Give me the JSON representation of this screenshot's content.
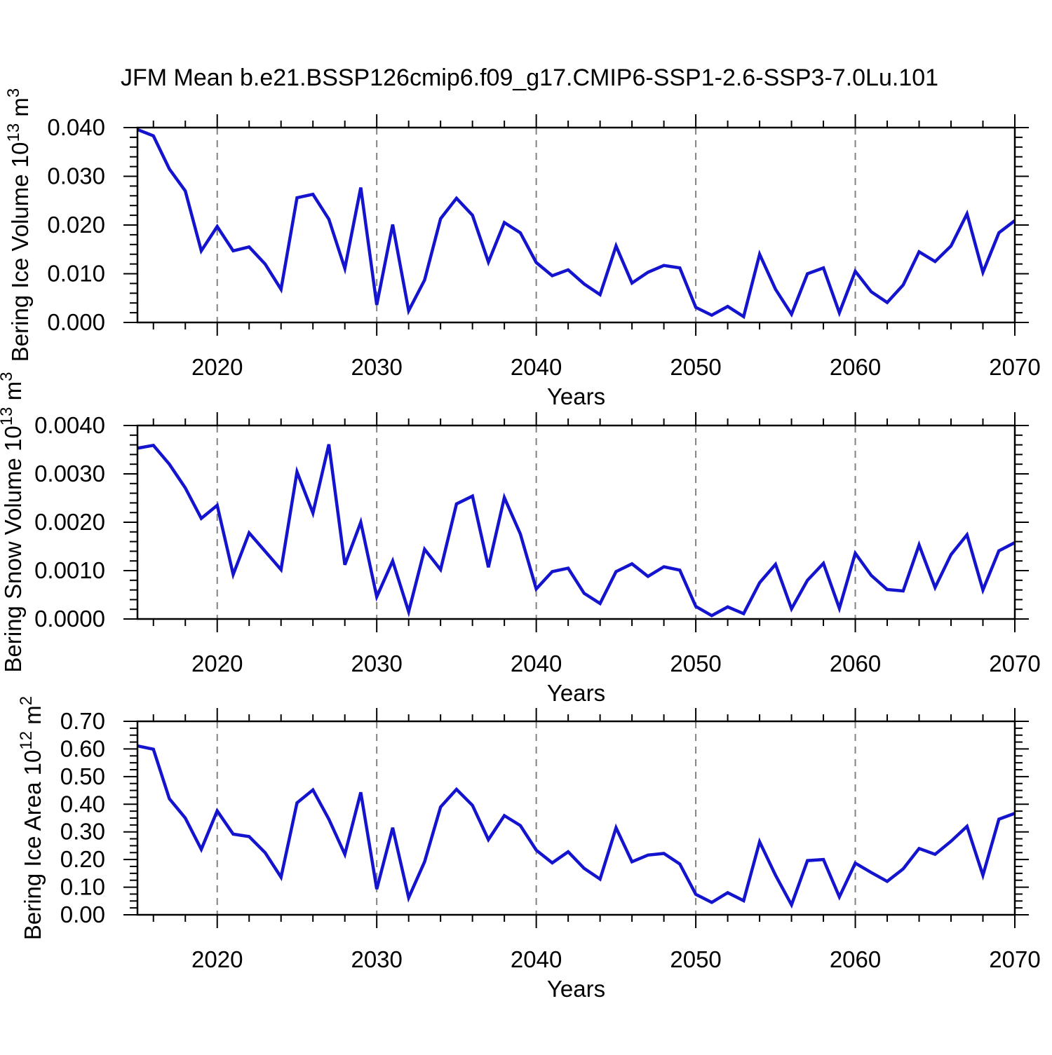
{
  "figure": {
    "title": "JFM Mean b.e21.BSSP126cmip6.f09_g17.CMIP6-SSP1-2.6-SSP3-7.0Lu.101",
    "background": "#ffffff",
    "line_color": "#1414cf",
    "frame_color": "#000000",
    "grid_color": "#828282",
    "text_color": "#000000"
  },
  "years": [
    2015,
    2016,
    2017,
    2018,
    2019,
    2020,
    2021,
    2022,
    2023,
    2024,
    2025,
    2026,
    2027,
    2028,
    2029,
    2030,
    2031,
    2032,
    2033,
    2034,
    2035,
    2036,
    2037,
    2038,
    2039,
    2040,
    2041,
    2042,
    2043,
    2044,
    2045,
    2046,
    2047,
    2048,
    2049,
    2050,
    2051,
    2052,
    2053,
    2054,
    2055,
    2056,
    2057,
    2058,
    2059,
    2060,
    2061,
    2062,
    2063,
    2064,
    2065,
    2066,
    2067,
    2068,
    2069,
    2070
  ],
  "chart_data": [
    {
      "type": "line",
      "name": "ice_volume",
      "ylabel": "Bering Ice Volume 10^{13} m^{3}",
      "xlabel": "Years",
      "ylim": [
        0.0,
        0.04
      ],
      "ytick_step": 0.01,
      "yminor_step": 0.002,
      "ytick_decimals": 3,
      "xlim": [
        2015,
        2070
      ],
      "xticks": [
        2020,
        2030,
        2040,
        2050,
        2060,
        2070
      ],
      "xminor_step": 2,
      "grid_x": [
        2020,
        2030,
        2040,
        2050,
        2060
      ],
      "grid_style": "vertical-dashed",
      "legend": "none",
      "values": [
        0.0396,
        0.0383,
        0.0315,
        0.027,
        0.0147,
        0.0197,
        0.0147,
        0.0155,
        0.012,
        0.0068,
        0.0256,
        0.0263,
        0.0212,
        0.0111,
        0.0277,
        0.0036,
        0.0201,
        0.0024,
        0.0087,
        0.0213,
        0.0255,
        0.022,
        0.0124,
        0.0205,
        0.0184,
        0.0123,
        0.0096,
        0.0108,
        0.0079,
        0.0057,
        0.0157,
        0.0081,
        0.0103,
        0.0117,
        0.0112,
        0.0031,
        0.0015,
        0.0033,
        0.0012,
        0.014,
        0.0068,
        0.0017,
        0.01,
        0.0112,
        0.002,
        0.0105,
        0.0063,
        0.0041,
        0.0077,
        0.0145,
        0.0125,
        0.0157,
        0.0223,
        0.0103,
        0.0184,
        0.0209
      ]
    },
    {
      "type": "line",
      "name": "snow_volume",
      "ylabel": "Bering Snow Volume 10^{13} m^{3}",
      "xlabel": "Years",
      "ylim": [
        0.0,
        0.004
      ],
      "ytick_step": 0.001,
      "yminor_step": 0.0002,
      "ytick_decimals": 4,
      "xlim": [
        2015,
        2070
      ],
      "xticks": [
        2020,
        2030,
        2040,
        2050,
        2060,
        2070
      ],
      "xminor_step": 2,
      "grid_x": [
        2020,
        2030,
        2040,
        2050,
        2060
      ],
      "grid_style": "vertical-dashed",
      "legend": "none",
      "values": [
        0.00353,
        0.00359,
        0.0032,
        0.00271,
        0.00208,
        0.00235,
        0.00092,
        0.00178,
        0.0014,
        0.00102,
        0.00304,
        0.00219,
        0.00361,
        0.00112,
        0.002,
        0.00046,
        0.0012,
        0.00015,
        0.00144,
        0.00102,
        0.00238,
        0.00254,
        0.00107,
        0.00251,
        0.00176,
        0.00062,
        0.00098,
        0.00105,
        0.00053,
        0.00032,
        0.00098,
        0.00114,
        0.00088,
        0.00108,
        0.00101,
        0.00026,
        7e-05,
        0.00025,
        0.00011,
        0.00075,
        0.00113,
        0.00021,
        0.0008,
        0.00115,
        0.00022,
        0.00136,
        0.0009,
        0.00061,
        0.00058,
        0.00153,
        0.00065,
        0.00133,
        0.00174,
        0.0006,
        0.00141,
        0.00158
      ]
    },
    {
      "type": "line",
      "name": "ice_area",
      "ylabel": "Bering Ice Area 10^{12} m^{2}",
      "xlabel": "Years",
      "ylim": [
        0.0,
        0.7
      ],
      "ytick_step": 0.1,
      "yminor_step": 0.025,
      "ytick_decimals": 2,
      "xlim": [
        2015,
        2070
      ],
      "xticks": [
        2020,
        2030,
        2040,
        2050,
        2060,
        2070
      ],
      "xminor_step": 2,
      "grid_x": [
        2020,
        2030,
        2040,
        2050,
        2060
      ],
      "grid_style": "vertical-dashed",
      "legend": "none",
      "values": [
        0.611,
        0.599,
        0.42,
        0.35,
        0.237,
        0.376,
        0.292,
        0.283,
        0.225,
        0.136,
        0.405,
        0.452,
        0.346,
        0.219,
        0.443,
        0.093,
        0.315,
        0.062,
        0.192,
        0.39,
        0.454,
        0.396,
        0.272,
        0.359,
        0.323,
        0.234,
        0.188,
        0.228,
        0.168,
        0.129,
        0.315,
        0.192,
        0.216,
        0.222,
        0.184,
        0.074,
        0.045,
        0.08,
        0.051,
        0.264,
        0.143,
        0.036,
        0.196,
        0.2,
        0.065,
        0.187,
        0.153,
        0.121,
        0.166,
        0.24,
        0.219,
        0.266,
        0.32,
        0.143,
        0.346,
        0.367
      ]
    }
  ]
}
